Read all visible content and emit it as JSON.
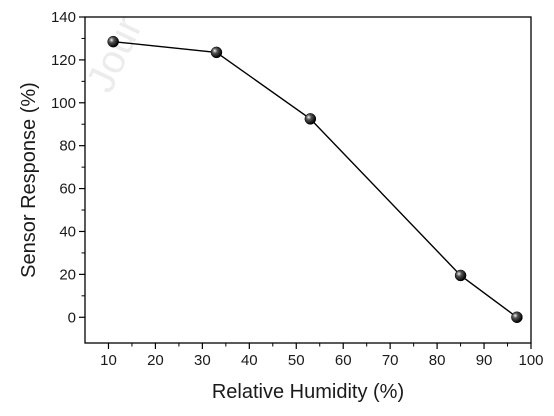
{
  "watermark": "Jour",
  "chart_data": {
    "type": "line",
    "title": "",
    "xlabel": "Relative Humidity (%)",
    "ylabel": "Sensor Response (%)",
    "xlim": [
      5,
      100
    ],
    "ylim": [
      -12,
      140
    ],
    "x_ticks": [
      10,
      20,
      30,
      40,
      50,
      60,
      70,
      80,
      90,
      100
    ],
    "y_ticks": [
      0,
      20,
      40,
      60,
      80,
      100,
      120,
      140
    ],
    "grid": false,
    "series": [
      {
        "x": [
          11,
          33,
          53,
          85,
          97
        ],
        "y": [
          128.5,
          123.5,
          92.5,
          19.5,
          0
        ],
        "color": "#000000",
        "marker": "sphere"
      }
    ]
  }
}
